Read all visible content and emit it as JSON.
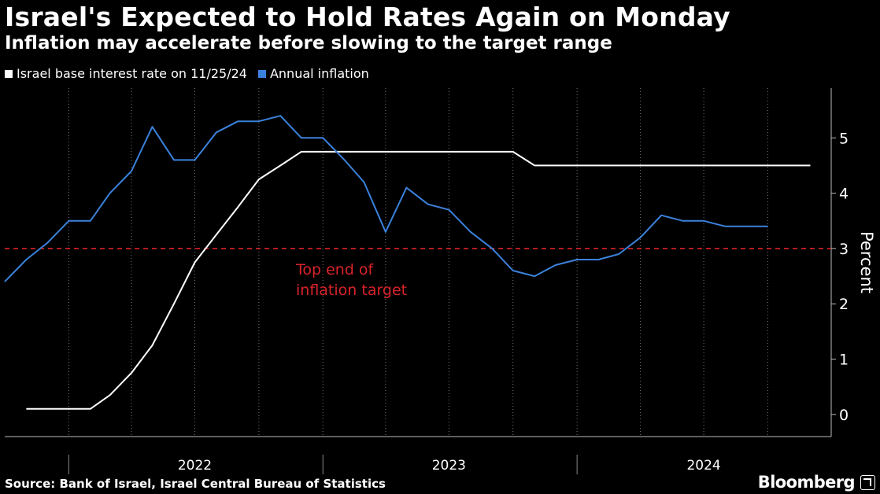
{
  "header": {
    "title": "Israel's Expected to Hold Rates Again on Monday",
    "subtitle": "Inflation may accelerate before slowing to the target range"
  },
  "footer": {
    "source": "Source: Bank of Israel, Israel Central Bureau of Statistics",
    "brand": "Bloomberg"
  },
  "colors": {
    "background": "#000000",
    "rate_line": "#ffffff",
    "inflation_line": "#3b82dc",
    "target_line": "#d9232a",
    "grid": "#777777"
  },
  "chart_data": {
    "type": "line",
    "title": "Israel's Expected to Hold Rates Again on Monday",
    "subtitle": "Inflation may accelerate before slowing to the target range",
    "ylabel": "Percent",
    "ylim": [
      -0.4,
      5.9
    ],
    "yticks": [
      0,
      1,
      2,
      3,
      4,
      5
    ],
    "xlim": [
      "2021-10-01",
      "2024-12-31"
    ],
    "year_labels": [
      "2022",
      "2023",
      "2024"
    ],
    "grid": "vertical dotted",
    "legend_position": "top-left",
    "series": [
      {
        "name": "Israel base interest rate on 11/25/24",
        "color": "#ffffff",
        "x": [
          "2021-11-01",
          "2021-12-01",
          "2022-01-01",
          "2022-02-01",
          "2022-03-01",
          "2022-04-01",
          "2022-05-01",
          "2022-06-01",
          "2022-07-01",
          "2022-08-01",
          "2022-09-01",
          "2022-10-01",
          "2022-11-01",
          "2022-12-01",
          "2023-01-01",
          "2023-02-01",
          "2023-03-01",
          "2023-04-01",
          "2023-05-01",
          "2023-06-01",
          "2023-07-01",
          "2023-08-01",
          "2023-09-01",
          "2023-10-01",
          "2023-11-01",
          "2023-12-01",
          "2024-01-01",
          "2024-02-01",
          "2024-03-01",
          "2024-04-01",
          "2024-05-01",
          "2024-06-01",
          "2024-07-01",
          "2024-08-01",
          "2024-09-01",
          "2024-10-01",
          "2024-11-01",
          "2024-12-01"
        ],
        "values": [
          0.1,
          0.1,
          0.1,
          0.1,
          0.35,
          0.75,
          1.25,
          2.0,
          2.75,
          3.25,
          3.75,
          4.25,
          4.5,
          4.75,
          4.75,
          4.75,
          4.75,
          4.75,
          4.75,
          4.75,
          4.75,
          4.75,
          4.75,
          4.75,
          4.5,
          4.5,
          4.5,
          4.5,
          4.5,
          4.5,
          4.5,
          4.5,
          4.5,
          4.5,
          4.5,
          4.5,
          4.5,
          4.5
        ]
      },
      {
        "name": "Annual inflation",
        "color": "#3b82dc",
        "x": [
          "2021-10-01",
          "2021-11-01",
          "2021-12-01",
          "2022-01-01",
          "2022-02-01",
          "2022-03-01",
          "2022-04-01",
          "2022-05-01",
          "2022-06-01",
          "2022-07-01",
          "2022-08-01",
          "2022-09-01",
          "2022-10-01",
          "2022-11-01",
          "2022-12-01",
          "2023-01-01",
          "2023-02-01",
          "2023-03-01",
          "2023-04-01",
          "2023-05-01",
          "2023-06-01",
          "2023-07-01",
          "2023-08-01",
          "2023-09-01",
          "2023-10-01",
          "2023-11-01",
          "2023-12-01",
          "2024-01-01",
          "2024-02-01",
          "2024-03-01",
          "2024-04-01",
          "2024-05-01",
          "2024-06-01",
          "2024-07-01",
          "2024-08-01",
          "2024-09-01",
          "2024-10-01"
        ],
        "values": [
          2.4,
          2.8,
          3.1,
          3.5,
          3.5,
          4.0,
          4.4,
          5.2,
          4.6,
          4.6,
          5.1,
          5.3,
          5.3,
          5.4,
          5.0,
          5.0,
          4.6,
          4.2,
          3.3,
          4.1,
          3.8,
          3.7,
          3.3,
          3.0,
          2.6,
          2.5,
          2.7,
          2.8,
          2.8,
          2.9,
          3.2,
          3.6,
          3.5,
          3.5,
          3.4,
          3.4,
          3.4
        ]
      }
    ],
    "reference_line": {
      "value": 3,
      "style": "dashed",
      "label_line1": "Top end of",
      "label_line2": "inflation target"
    }
  }
}
